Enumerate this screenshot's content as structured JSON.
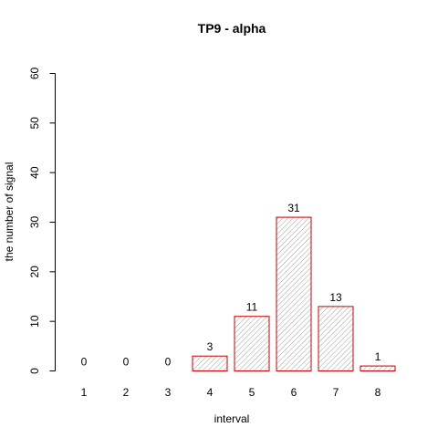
{
  "chart_data": {
    "type": "bar",
    "title": "TP9  -  alpha",
    "xlabel": "interval",
    "ylabel": "the number of signal",
    "categories": [
      "1",
      "2",
      "3",
      "4",
      "5",
      "6",
      "7",
      "8"
    ],
    "values": [
      0,
      0,
      0,
      3,
      11,
      31,
      13,
      1
    ],
    "data_labels": [
      "0",
      "0",
      "0",
      "3",
      "11",
      "31",
      "13",
      "1"
    ],
    "ylim": [
      0,
      60
    ],
    "yticks": [
      0,
      10,
      20,
      30,
      40,
      50,
      60
    ],
    "grid": false,
    "legend": "none",
    "bar_border_color": "#cc0000",
    "bar_hatch_color": "#a0a0a0"
  }
}
